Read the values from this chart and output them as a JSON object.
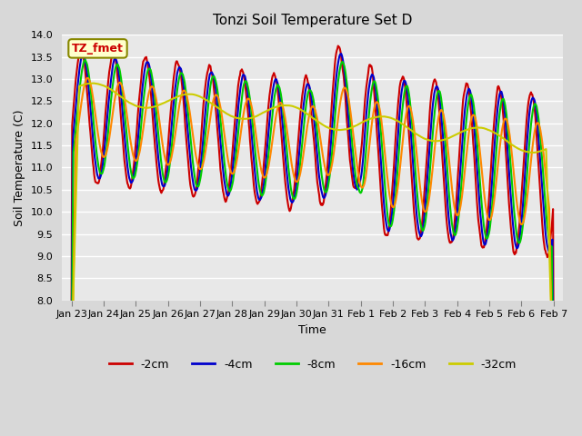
{
  "title": "Tonzi Soil Temperature Set D",
  "xlabel": "Time",
  "ylabel": "Soil Temperature (C)",
  "ylim": [
    8.0,
    14.0
  ],
  "yticks": [
    8.0,
    8.5,
    9.0,
    9.5,
    10.0,
    10.5,
    11.0,
    11.5,
    12.0,
    12.5,
    13.0,
    13.5,
    14.0
  ],
  "xtick_labels": [
    "Jan 23",
    "Jan 24",
    "Jan 25",
    "Jan 26",
    "Jan 27",
    "Jan 28",
    "Jan 29",
    "Jan 30",
    "Jan 31",
    "Feb 1",
    "Feb 2",
    "Feb 3",
    "Feb 4",
    "Feb 5",
    "Feb 6",
    "Feb 7"
  ],
  "legend_label": "TZ_fmet",
  "series": {
    "-2cm": {
      "color": "#cc0000",
      "lw": 1.5
    },
    "-4cm": {
      "color": "#0000cc",
      "lw": 1.5
    },
    "-8cm": {
      "color": "#00cc00",
      "lw": 1.5
    },
    "-16cm": {
      "color": "#ff8800",
      "lw": 1.5
    },
    "-32cm": {
      "color": "#cccc00",
      "lw": 1.5
    }
  },
  "background_color": "#d8d8d8",
  "plot_bg_color": "#e8e8e8",
  "grid_color": "#ffffff",
  "annotation_box_color": "#ffffcc",
  "annotation_text_color": "#cc0000",
  "annotation_border_color": "#888800"
}
